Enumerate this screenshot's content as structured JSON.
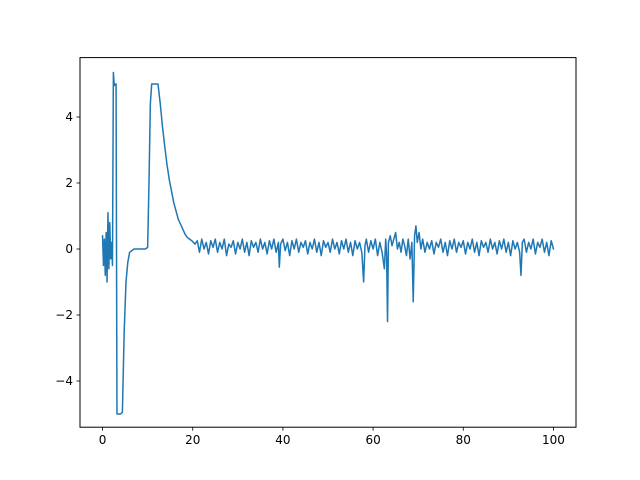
{
  "chart_data": {
    "type": "line",
    "title": "",
    "xlabel": "",
    "ylabel": "",
    "xlim": [
      -5,
      105
    ],
    "ylim": [
      -5.4,
      5.8
    ],
    "grid": false,
    "legend": "none",
    "x_ticks": [
      0,
      20,
      40,
      60,
      80,
      100
    ],
    "x_tick_labels": [
      "0",
      "20",
      "40",
      "60",
      "80",
      "100"
    ],
    "y_ticks": [
      -4,
      -2,
      0,
      2,
      4
    ],
    "y_tick_labels": [
      "−4",
      "−2",
      "0",
      "2",
      "4"
    ],
    "series": [
      {
        "color": "#1f77b4",
        "points": [
          [
            0.0,
            0.4
          ],
          [
            0.2,
            -0.5
          ],
          [
            0.4,
            0.3
          ],
          [
            0.6,
            -0.8
          ],
          [
            0.8,
            0.5
          ],
          [
            1.0,
            -1.0
          ],
          [
            1.2,
            1.1
          ],
          [
            1.4,
            -0.6
          ],
          [
            1.6,
            0.8
          ],
          [
            1.8,
            -0.3
          ],
          [
            2.0,
            0.2
          ],
          [
            2.2,
            -0.5
          ],
          [
            2.4,
            5.35
          ],
          [
            2.6,
            4.95
          ],
          [
            2.8,
            5.0
          ],
          [
            3.0,
            5.0
          ],
          [
            3.2,
            -5.0
          ],
          [
            3.6,
            -5.0
          ],
          [
            4.0,
            -5.0
          ],
          [
            4.4,
            -4.95
          ],
          [
            4.8,
            -2.5
          ],
          [
            5.2,
            -1.0
          ],
          [
            5.6,
            -0.4
          ],
          [
            6.0,
            -0.1
          ],
          [
            7.0,
            0.0
          ],
          [
            8.0,
            0.0
          ],
          [
            9.5,
            0.0
          ],
          [
            10.0,
            0.05
          ],
          [
            10.3,
            2.0
          ],
          [
            10.6,
            4.4
          ],
          [
            10.9,
            5.0
          ],
          [
            11.5,
            5.0
          ],
          [
            12.0,
            5.0
          ],
          [
            12.3,
            5.0
          ],
          [
            12.8,
            4.4
          ],
          [
            13.3,
            3.7
          ],
          [
            13.8,
            3.1
          ],
          [
            14.3,
            2.55
          ],
          [
            14.8,
            2.1
          ],
          [
            15.3,
            1.75
          ],
          [
            15.8,
            1.4
          ],
          [
            16.3,
            1.15
          ],
          [
            16.8,
            0.9
          ],
          [
            17.3,
            0.75
          ],
          [
            17.8,
            0.6
          ],
          [
            18.3,
            0.45
          ],
          [
            18.8,
            0.35
          ],
          [
            19.3,
            0.3
          ],
          [
            19.8,
            0.25
          ],
          [
            20.5,
            0.15
          ],
          [
            21.0,
            0.25
          ],
          [
            21.5,
            -0.1
          ],
          [
            22.0,
            0.3
          ],
          [
            22.5,
            0.0
          ],
          [
            23.0,
            0.2
          ],
          [
            23.5,
            -0.15
          ],
          [
            24.0,
            0.25
          ],
          [
            24.5,
            0.05
          ],
          [
            25.0,
            0.3
          ],
          [
            25.5,
            -0.1
          ],
          [
            26.0,
            0.2
          ],
          [
            26.5,
            0.0
          ],
          [
            27.0,
            0.3
          ],
          [
            27.5,
            -0.2
          ],
          [
            28.0,
            0.15
          ],
          [
            28.5,
            0.05
          ],
          [
            29.0,
            0.25
          ],
          [
            29.5,
            -0.15
          ],
          [
            30.0,
            0.2
          ],
          [
            30.5,
            0.0
          ],
          [
            31.0,
            0.3
          ],
          [
            31.5,
            -0.1
          ],
          [
            32.0,
            0.2
          ],
          [
            32.5,
            -0.2
          ],
          [
            33.0,
            0.25
          ],
          [
            33.5,
            0.05
          ],
          [
            34.0,
            0.2
          ],
          [
            34.5,
            -0.1
          ],
          [
            35.0,
            0.3
          ],
          [
            35.5,
            0.0
          ],
          [
            36.0,
            0.2
          ],
          [
            36.5,
            -0.15
          ],
          [
            37.0,
            0.25
          ],
          [
            37.5,
            0.0
          ],
          [
            38.0,
            0.3
          ],
          [
            38.5,
            -0.1
          ],
          [
            39.0,
            0.2
          ],
          [
            39.2,
            -0.55
          ],
          [
            39.5,
            0.15
          ],
          [
            40.0,
            0.3
          ],
          [
            40.5,
            -0.05
          ],
          [
            41.0,
            0.2
          ],
          [
            41.5,
            -0.2
          ],
          [
            42.0,
            0.25
          ],
          [
            42.5,
            0.0
          ],
          [
            43.0,
            0.3
          ],
          [
            43.5,
            -0.1
          ],
          [
            44.0,
            0.2
          ],
          [
            44.5,
            0.05
          ],
          [
            45.0,
            0.25
          ],
          [
            45.5,
            -0.15
          ],
          [
            46.0,
            0.2
          ],
          [
            46.5,
            0.0
          ],
          [
            47.0,
            0.3
          ],
          [
            47.5,
            -0.1
          ],
          [
            48.0,
            0.2
          ],
          [
            48.5,
            -0.2
          ],
          [
            49.0,
            0.25
          ],
          [
            49.5,
            0.05
          ],
          [
            50.0,
            0.2
          ],
          [
            50.5,
            -0.1
          ],
          [
            51.0,
            0.3
          ],
          [
            51.5,
            0.0
          ],
          [
            52.0,
            0.2
          ],
          [
            52.5,
            -0.15
          ],
          [
            53.0,
            0.25
          ],
          [
            53.5,
            0.0
          ],
          [
            54.0,
            0.3
          ],
          [
            54.5,
            -0.1
          ],
          [
            55.0,
            0.2
          ],
          [
            55.5,
            -0.2
          ],
          [
            56.0,
            0.25
          ],
          [
            56.5,
            0.0
          ],
          [
            57.0,
            0.2
          ],
          [
            57.5,
            -0.1
          ],
          [
            57.9,
            -1.0
          ],
          [
            58.2,
            0.1
          ],
          [
            58.5,
            0.3
          ],
          [
            59.0,
            -0.1
          ],
          [
            59.5,
            0.25
          ],
          [
            60.0,
            0.0
          ],
          [
            60.5,
            0.3
          ],
          [
            61.0,
            -0.2
          ],
          [
            61.5,
            0.2
          ],
          [
            62.0,
            -0.1
          ],
          [
            62.5,
            -0.6
          ],
          [
            62.8,
            0.3
          ],
          [
            63.0,
            -0.2
          ],
          [
            63.2,
            -2.2
          ],
          [
            63.4,
            0.2
          ],
          [
            63.8,
            0.4
          ],
          [
            64.2,
            0.1
          ],
          [
            64.6,
            0.3
          ],
          [
            65.0,
            0.5
          ],
          [
            65.4,
            0.0
          ],
          [
            65.8,
            0.2
          ],
          [
            66.2,
            -0.1
          ],
          [
            66.6,
            0.3
          ],
          [
            67.0,
            0.1
          ],
          [
            67.4,
            -0.2
          ],
          [
            67.8,
            0.3
          ],
          [
            68.2,
            -0.3
          ],
          [
            68.6,
            0.2
          ],
          [
            68.9,
            -1.6
          ],
          [
            69.2,
            0.4
          ],
          [
            69.5,
            0.7
          ],
          [
            69.8,
            0.2
          ],
          [
            70.2,
            0.5
          ],
          [
            70.6,
            0.0
          ],
          [
            71.0,
            0.3
          ],
          [
            71.5,
            -0.1
          ],
          [
            72.0,
            0.2
          ],
          [
            72.5,
            0.0
          ],
          [
            73.0,
            0.25
          ],
          [
            73.5,
            -0.15
          ],
          [
            74.0,
            0.2
          ],
          [
            74.5,
            0.05
          ],
          [
            75.0,
            0.3
          ],
          [
            75.5,
            -0.1
          ],
          [
            76.0,
            0.2
          ],
          [
            76.5,
            -0.2
          ],
          [
            77.0,
            0.25
          ],
          [
            77.5,
            0.0
          ],
          [
            78.0,
            0.3
          ],
          [
            78.5,
            -0.1
          ],
          [
            79.0,
            0.2
          ],
          [
            79.5,
            0.05
          ],
          [
            80.0,
            0.25
          ],
          [
            80.5,
            -0.15
          ],
          [
            81.0,
            0.2
          ],
          [
            81.5,
            0.0
          ],
          [
            82.0,
            0.3
          ],
          [
            82.5,
            -0.1
          ],
          [
            83.0,
            0.2
          ],
          [
            83.5,
            -0.2
          ],
          [
            84.0,
            0.25
          ],
          [
            84.5,
            0.05
          ],
          [
            85.0,
            0.2
          ],
          [
            85.5,
            -0.1
          ],
          [
            86.0,
            0.3
          ],
          [
            86.5,
            0.0
          ],
          [
            87.0,
            0.2
          ],
          [
            87.5,
            -0.15
          ],
          [
            88.0,
            0.25
          ],
          [
            88.5,
            0.0
          ],
          [
            89.0,
            0.3
          ],
          [
            89.5,
            -0.1
          ],
          [
            90.0,
            0.2
          ],
          [
            90.5,
            -0.2
          ],
          [
            91.0,
            0.25
          ],
          [
            91.5,
            0.0
          ],
          [
            92.0,
            0.2
          ],
          [
            92.5,
            -0.1
          ],
          [
            92.8,
            -0.8
          ],
          [
            93.1,
            0.2
          ],
          [
            93.5,
            0.3
          ],
          [
            94.0,
            -0.1
          ],
          [
            94.5,
            0.2
          ],
          [
            95.0,
            0.0
          ],
          [
            95.5,
            0.3
          ],
          [
            96.0,
            -0.15
          ],
          [
            96.5,
            0.2
          ],
          [
            97.0,
            0.05
          ],
          [
            97.5,
            0.3
          ],
          [
            98.0,
            -0.1
          ],
          [
            98.5,
            0.2
          ],
          [
            99.0,
            -0.2
          ],
          [
            99.5,
            0.25
          ],
          [
            100.0,
            0.0
          ]
        ]
      }
    ]
  }
}
